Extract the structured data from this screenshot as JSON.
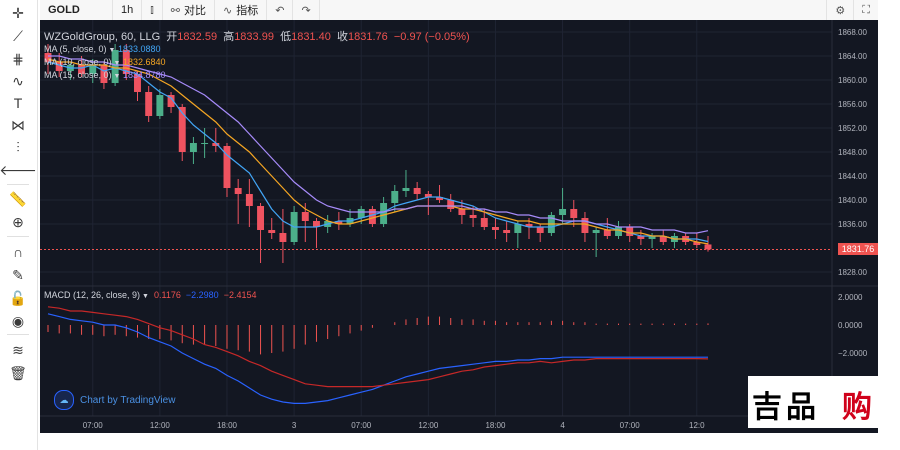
{
  "toolbar": {
    "symbol": "GOLD",
    "interval": "1h",
    "compare_label": "对比",
    "indicators_label": "指标"
  },
  "header": {
    "title": "WZGoldGroup, 60, LLG",
    "open_label": "开",
    "open_value": "1832.59",
    "high_label": "高",
    "high_value": "1833.99",
    "low_label": "低",
    "low_value": "1831.40",
    "close_label": "收",
    "close_value": "1831.76",
    "change": "−0.97 (−0.05%)"
  },
  "ma_legend": [
    {
      "label": "MA (5, close, 0)",
      "value": "1833.0880",
      "color": "#42a5f5"
    },
    {
      "label": "MA (10, close, 0)",
      "value": "1832.6840",
      "color": "#f5a623"
    },
    {
      "label": "MA (15, close, 0)",
      "value": "1834.8780",
      "color": "#a78bfa"
    }
  ],
  "macd_legend": {
    "label": "MACD (12, 26, close, 9)",
    "v1": "0.1176",
    "v2": "−2.2980",
    "v3": "−2.4154"
  },
  "attribution": "Chart by TradingView",
  "last_price": "1831.76",
  "price_ticks": [
    "1868.00",
    "1864.00",
    "1860.00",
    "1856.00",
    "1852.00",
    "1848.00",
    "1844.00",
    "1840.00",
    "1836.00",
    "1828.00"
  ],
  "macd_ticks": [
    "2.0000",
    "0.0000",
    "−2.0000"
  ],
  "time_ticks": [
    "07:00",
    "12:00",
    "18:00",
    "3",
    "07:00",
    "12:00",
    "18:00",
    "4",
    "07:00",
    "12:0"
  ],
  "watermark_text": "吉品 购",
  "chart_data": {
    "type": "candlestick",
    "symbol": "GOLD",
    "interval": "60",
    "ylim": [
      1826,
      1869
    ],
    "candles": [
      {
        "o": 1864.5,
        "h": 1866.0,
        "l": 1861.0,
        "c": 1863.0
      },
      {
        "o": 1863.0,
        "h": 1864.5,
        "l": 1860.5,
        "c": 1861.5
      },
      {
        "o": 1861.5,
        "h": 1863.0,
        "l": 1860.0,
        "c": 1862.5
      },
      {
        "o": 1862.5,
        "h": 1864.0,
        "l": 1860.5,
        "c": 1861.0
      },
      {
        "o": 1861.0,
        "h": 1863.5,
        "l": 1859.5,
        "c": 1862.5
      },
      {
        "o": 1862.5,
        "h": 1863.0,
        "l": 1858.5,
        "c": 1859.5
      },
      {
        "o": 1859.5,
        "h": 1866.0,
        "l": 1859.0,
        "c": 1865.0
      },
      {
        "o": 1865.0,
        "h": 1866.0,
        "l": 1860.0,
        "c": 1861.0
      },
      {
        "o": 1861.0,
        "h": 1861.5,
        "l": 1856.5,
        "c": 1858.0
      },
      {
        "o": 1858.0,
        "h": 1859.0,
        "l": 1853.0,
        "c": 1854.0
      },
      {
        "o": 1854.0,
        "h": 1858.5,
        "l": 1853.5,
        "c": 1857.5
      },
      {
        "o": 1857.5,
        "h": 1858.0,
        "l": 1854.5,
        "c": 1855.5
      },
      {
        "o": 1855.5,
        "h": 1856.0,
        "l": 1846.5,
        "c": 1848.0
      },
      {
        "o": 1848.0,
        "h": 1850.5,
        "l": 1846.0,
        "c": 1849.5
      },
      {
        "o": 1849.5,
        "h": 1852.0,
        "l": 1847.0,
        "c": 1849.5
      },
      {
        "o": 1849.5,
        "h": 1852.0,
        "l": 1848.0,
        "c": 1849.0
      },
      {
        "o": 1849.0,
        "h": 1849.5,
        "l": 1840.5,
        "c": 1842.0
      },
      {
        "o": 1842.0,
        "h": 1843.5,
        "l": 1836.0,
        "c": 1841.0
      },
      {
        "o": 1841.0,
        "h": 1843.5,
        "l": 1835.5,
        "c": 1839.0
      },
      {
        "o": 1839.0,
        "h": 1839.5,
        "l": 1829.5,
        "c": 1835.0
      },
      {
        "o": 1835.0,
        "h": 1837.0,
        "l": 1833.5,
        "c": 1834.5
      },
      {
        "o": 1834.5,
        "h": 1838.5,
        "l": 1829.5,
        "c": 1833.0
      },
      {
        "o": 1833.0,
        "h": 1839.0,
        "l": 1832.5,
        "c": 1838.0
      },
      {
        "o": 1838.0,
        "h": 1839.5,
        "l": 1833.0,
        "c": 1836.5
      },
      {
        "o": 1836.5,
        "h": 1837.0,
        "l": 1832.0,
        "c": 1835.5
      },
      {
        "o": 1835.5,
        "h": 1837.5,
        "l": 1834.5,
        "c": 1836.5
      },
      {
        "o": 1836.5,
        "h": 1838.0,
        "l": 1835.0,
        "c": 1836.0
      },
      {
        "o": 1836.0,
        "h": 1838.5,
        "l": 1835.5,
        "c": 1837.0
      },
      {
        "o": 1837.0,
        "h": 1839.0,
        "l": 1836.0,
        "c": 1838.5
      },
      {
        "o": 1838.5,
        "h": 1839.0,
        "l": 1835.5,
        "c": 1836.0
      },
      {
        "o": 1836.0,
        "h": 1840.5,
        "l": 1835.5,
        "c": 1839.5
      },
      {
        "o": 1839.5,
        "h": 1842.5,
        "l": 1838.0,
        "c": 1841.5
      },
      {
        "o": 1841.5,
        "h": 1845.0,
        "l": 1840.5,
        "c": 1842.0
      },
      {
        "o": 1842.0,
        "h": 1843.0,
        "l": 1840.0,
        "c": 1841.0
      },
      {
        "o": 1841.0,
        "h": 1841.5,
        "l": 1837.5,
        "c": 1840.5
      },
      {
        "o": 1840.5,
        "h": 1842.5,
        "l": 1839.5,
        "c": 1840.0
      },
      {
        "o": 1840.0,
        "h": 1841.0,
        "l": 1838.0,
        "c": 1838.5
      },
      {
        "o": 1838.5,
        "h": 1840.0,
        "l": 1836.0,
        "c": 1837.5
      },
      {
        "o": 1837.5,
        "h": 1839.0,
        "l": 1835.5,
        "c": 1837.0
      },
      {
        "o": 1837.0,
        "h": 1838.5,
        "l": 1835.0,
        "c": 1835.5
      },
      {
        "o": 1835.5,
        "h": 1837.0,
        "l": 1833.5,
        "c": 1835.0
      },
      {
        "o": 1835.0,
        "h": 1836.5,
        "l": 1833.0,
        "c": 1834.5
      },
      {
        "o": 1834.5,
        "h": 1836.5,
        "l": 1832.0,
        "c": 1836.0
      },
      {
        "o": 1836.0,
        "h": 1837.0,
        "l": 1833.5,
        "c": 1835.5
      },
      {
        "o": 1835.5,
        "h": 1836.0,
        "l": 1833.0,
        "c": 1834.5
      },
      {
        "o": 1834.5,
        "h": 1838.0,
        "l": 1834.0,
        "c": 1837.5
      },
      {
        "o": 1837.5,
        "h": 1842.0,
        "l": 1836.0,
        "c": 1838.5
      },
      {
        "o": 1838.5,
        "h": 1840.0,
        "l": 1835.5,
        "c": 1837.0
      },
      {
        "o": 1837.0,
        "h": 1838.0,
        "l": 1833.0,
        "c": 1834.5
      },
      {
        "o": 1834.5,
        "h": 1835.5,
        "l": 1830.5,
        "c": 1835.0
      },
      {
        "o": 1835.0,
        "h": 1837.0,
        "l": 1833.5,
        "c": 1834.0
      },
      {
        "o": 1834.0,
        "h": 1836.5,
        "l": 1833.5,
        "c": 1835.5
      },
      {
        "o": 1835.5,
        "h": 1836.0,
        "l": 1833.0,
        "c": 1834.0
      },
      {
        "o": 1834.0,
        "h": 1835.0,
        "l": 1832.5,
        "c": 1833.5
      },
      {
        "o": 1833.5,
        "h": 1834.5,
        "l": 1832.0,
        "c": 1834.0
      },
      {
        "o": 1834.0,
        "h": 1835.0,
        "l": 1832.5,
        "c": 1833.0
      },
      {
        "o": 1833.0,
        "h": 1834.5,
        "l": 1832.0,
        "c": 1834.0
      },
      {
        "o": 1834.0,
        "h": 1834.5,
        "l": 1832.5,
        "c": 1833.0
      },
      {
        "o": 1833.0,
        "h": 1834.5,
        "l": 1832.0,
        "c": 1832.5
      },
      {
        "o": 1832.59,
        "h": 1833.99,
        "l": 1831.4,
        "c": 1831.76
      }
    ],
    "ma": [
      {
        "period": 5,
        "values": [
          1863.0,
          1862.5,
          1862.0,
          1862.0,
          1862.5,
          1861.5,
          1862.0,
          1861.5,
          1861.0,
          1859.5,
          1858.0,
          1857.0,
          1854.5,
          1852.5,
          1851.0,
          1849.5,
          1847.5,
          1846.0,
          1844.5,
          1841.5,
          1838.5,
          1836.5,
          1835.5,
          1835.5,
          1835.5,
          1836.0,
          1836.5,
          1836.5,
          1837.0,
          1837.5,
          1838.0,
          1839.0,
          1839.5,
          1840.0,
          1840.5,
          1840.5,
          1840.0,
          1839.5,
          1839.0,
          1838.0,
          1837.0,
          1836.5,
          1836.0,
          1835.5,
          1835.5,
          1835.5,
          1836.0,
          1836.5,
          1836.5,
          1836.0,
          1835.5,
          1835.0,
          1834.5,
          1834.0,
          1834.0,
          1834.0,
          1833.5,
          1833.5,
          1833.5,
          1833.09
        ]
      },
      {
        "period": 10,
        "values": [
          1863.5,
          1863.0,
          1863.0,
          1862.5,
          1862.5,
          1862.5,
          1862.0,
          1862.0,
          1861.5,
          1861.0,
          1860.0,
          1859.0,
          1857.5,
          1856.0,
          1854.5,
          1853.0,
          1851.0,
          1849.5,
          1848.0,
          1846.0,
          1844.0,
          1842.0,
          1840.0,
          1838.5,
          1837.5,
          1836.5,
          1836.0,
          1836.0,
          1836.5,
          1837.0,
          1837.5,
          1838.0,
          1838.5,
          1839.0,
          1839.0,
          1839.0,
          1839.0,
          1838.5,
          1838.5,
          1838.0,
          1837.5,
          1837.0,
          1836.5,
          1836.5,
          1836.0,
          1836.0,
          1836.0,
          1836.0,
          1836.0,
          1835.5,
          1835.0,
          1835.0,
          1834.5,
          1834.5,
          1834.0,
          1834.0,
          1833.5,
          1833.5,
          1833.0,
          1832.68
        ]
      },
      {
        "period": 15,
        "values": [
          1864.0,
          1864.0,
          1863.5,
          1863.5,
          1863.0,
          1863.0,
          1862.5,
          1862.5,
          1862.0,
          1861.5,
          1861.0,
          1860.5,
          1859.5,
          1858.5,
          1857.5,
          1856.0,
          1854.5,
          1853.0,
          1851.0,
          1849.0,
          1847.0,
          1845.0,
          1843.0,
          1841.5,
          1840.0,
          1839.0,
          1838.5,
          1838.0,
          1838.0,
          1838.0,
          1838.0,
          1838.5,
          1838.5,
          1839.0,
          1839.0,
          1839.0,
          1839.0,
          1839.0,
          1838.5,
          1838.5,
          1838.0,
          1838.0,
          1837.5,
          1837.5,
          1837.0,
          1837.0,
          1836.5,
          1836.5,
          1836.5,
          1836.0,
          1836.0,
          1835.5,
          1835.5,
          1835.5,
          1835.0,
          1835.0,
          1835.0,
          1834.5,
          1834.5,
          1834.88
        ]
      }
    ],
    "macd": {
      "ylim": [
        -6.5,
        2.5
      ],
      "hist": [
        -0.5,
        -0.6,
        -0.6,
        -0.7,
        -0.7,
        -0.8,
        -0.7,
        -0.8,
        -0.9,
        -1.0,
        -1.0,
        -1.1,
        -1.3,
        -1.4,
        -1.4,
        -1.5,
        -1.7,
        -1.8,
        -1.9,
        -2.1,
        -2.0,
        -1.9,
        -1.7,
        -1.4,
        -1.2,
        -1.0,
        -0.8,
        -0.6,
        -0.4,
        -0.2,
        0.0,
        0.2,
        0.4,
        0.5,
        0.6,
        0.6,
        0.5,
        0.4,
        0.4,
        0.3,
        0.3,
        0.2,
        0.2,
        0.2,
        0.2,
        0.3,
        0.3,
        0.2,
        0.2,
        0.1,
        0.1,
        0.1,
        0.1,
        0.1,
        0.1,
        0.1,
        0.1,
        0.1,
        0.1,
        0.12
      ],
      "macd": [
        0.8,
        0.6,
        0.4,
        0.3,
        0.2,
        0.0,
        0.0,
        -0.2,
        -0.5,
        -0.9,
        -1.2,
        -1.5,
        -2.0,
        -2.4,
        -2.8,
        -3.1,
        -3.6,
        -4.0,
        -4.5,
        -5.0,
        -5.3,
        -5.5,
        -5.6,
        -5.6,
        -5.5,
        -5.4,
        -5.2,
        -5.0,
        -4.8,
        -4.6,
        -4.3,
        -4.0,
        -3.7,
        -3.5,
        -3.3,
        -3.1,
        -3.0,
        -2.9,
        -2.8,
        -2.7,
        -2.6,
        -2.6,
        -2.5,
        -2.5,
        -2.4,
        -2.4,
        -2.3,
        -2.3,
        -2.3,
        -2.3,
        -2.3,
        -2.3,
        -2.3,
        -2.3,
        -2.3,
        -2.3,
        -2.3,
        -2.3,
        -2.3,
        -2.3
      ],
      "signal": [
        1.3,
        1.2,
        1.0,
        1.0,
        0.9,
        0.8,
        0.7,
        0.6,
        0.4,
        0.1,
        -0.2,
        -0.4,
        -0.7,
        -1.0,
        -1.4,
        -1.6,
        -1.9,
        -2.2,
        -2.6,
        -2.9,
        -3.3,
        -3.6,
        -3.9,
        -4.2,
        -4.3,
        -4.4,
        -4.4,
        -4.4,
        -4.4,
        -4.4,
        -4.3,
        -4.2,
        -4.1,
        -4.0,
        -3.9,
        -3.7,
        -3.5,
        -3.3,
        -3.2,
        -3.0,
        -2.9,
        -2.8,
        -2.7,
        -2.7,
        -2.6,
        -2.7,
        -2.6,
        -2.5,
        -2.5,
        -2.4,
        -2.4,
        -2.4,
        -2.4,
        -2.4,
        -2.4,
        -2.4,
        -2.4,
        -2.4,
        -2.4,
        -2.42
      ]
    }
  }
}
